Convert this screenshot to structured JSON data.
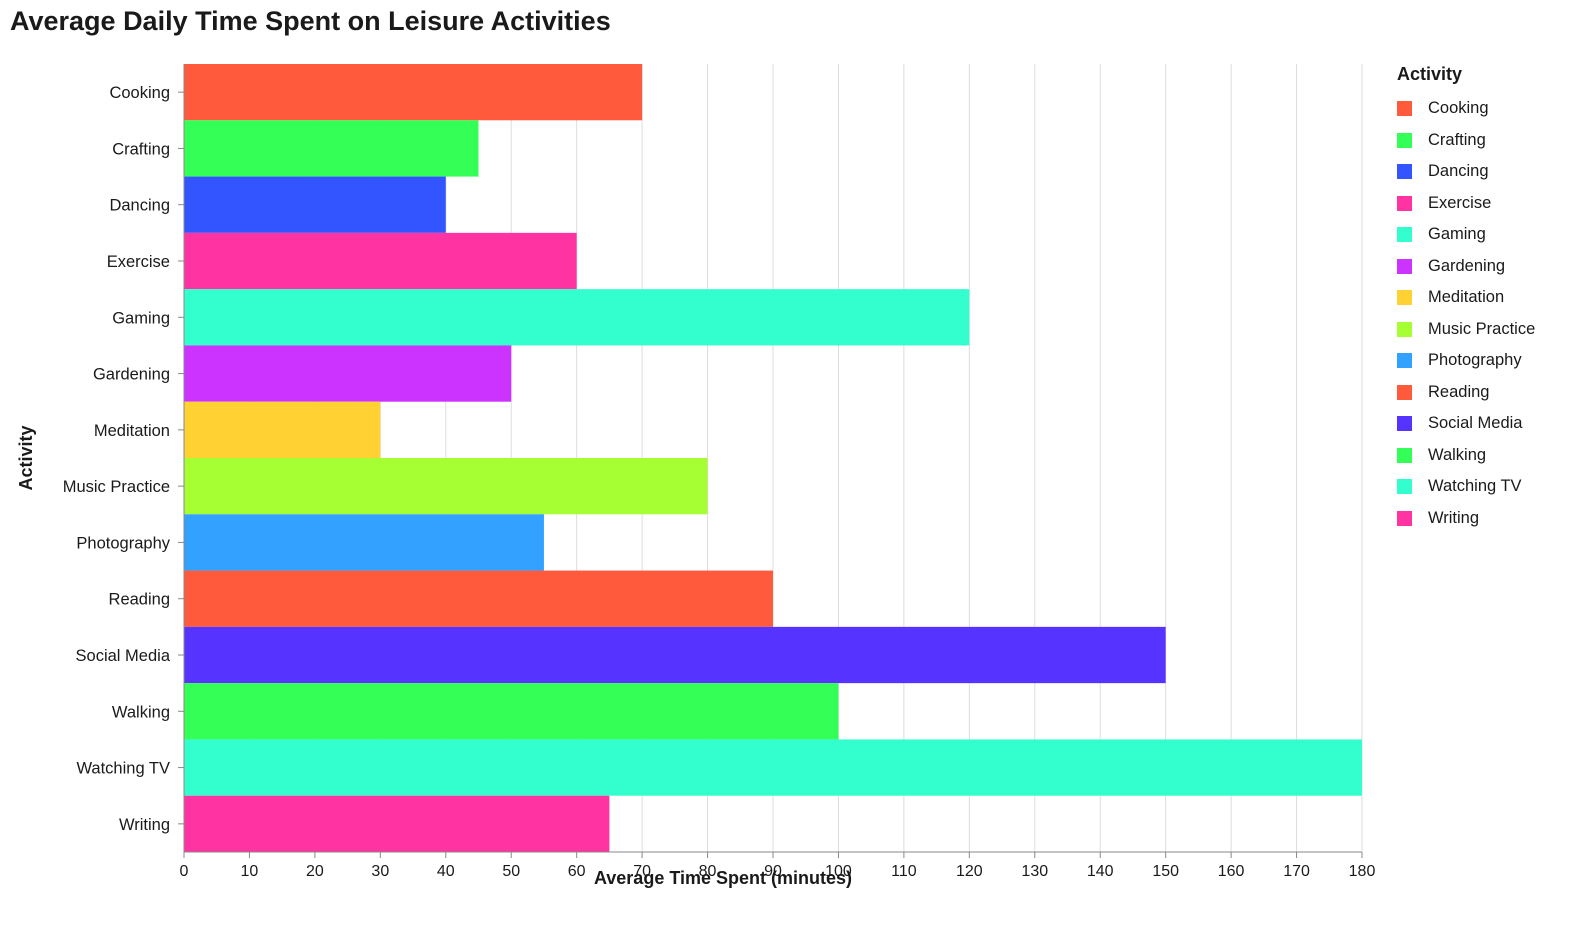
{
  "chart_data": {
    "type": "bar",
    "orientation": "horizontal",
    "title": "Average Daily Time Spent on Leisure Activities",
    "xlabel": "Average Time Spent (minutes)",
    "ylabel": "Activity",
    "xlim": [
      0,
      180
    ],
    "x_ticks": [
      0,
      10,
      20,
      30,
      40,
      50,
      60,
      70,
      80,
      90,
      100,
      110,
      120,
      130,
      140,
      150,
      160,
      170,
      180
    ],
    "grid": "vertical",
    "legend_title": "Activity",
    "legend_position": "right",
    "categories": [
      "Cooking",
      "Crafting",
      "Dancing",
      "Exercise",
      "Gaming",
      "Gardening",
      "Meditation",
      "Music Practice",
      "Photography",
      "Reading",
      "Social Media",
      "Walking",
      "Watching TV",
      "Writing"
    ],
    "values": [
      70,
      45,
      40,
      60,
      120,
      50,
      30,
      80,
      55,
      90,
      150,
      100,
      180,
      65
    ],
    "colors": [
      "#ff5a3c",
      "#33ff57",
      "#3355ff",
      "#ff33a1",
      "#33ffce",
      "#cc33ff",
      "#ffd133",
      "#a5ff33",
      "#33a1ff",
      "#ff5a3c",
      "#5733ff",
      "#33ff57",
      "#33ffce",
      "#ff33a1"
    ]
  }
}
